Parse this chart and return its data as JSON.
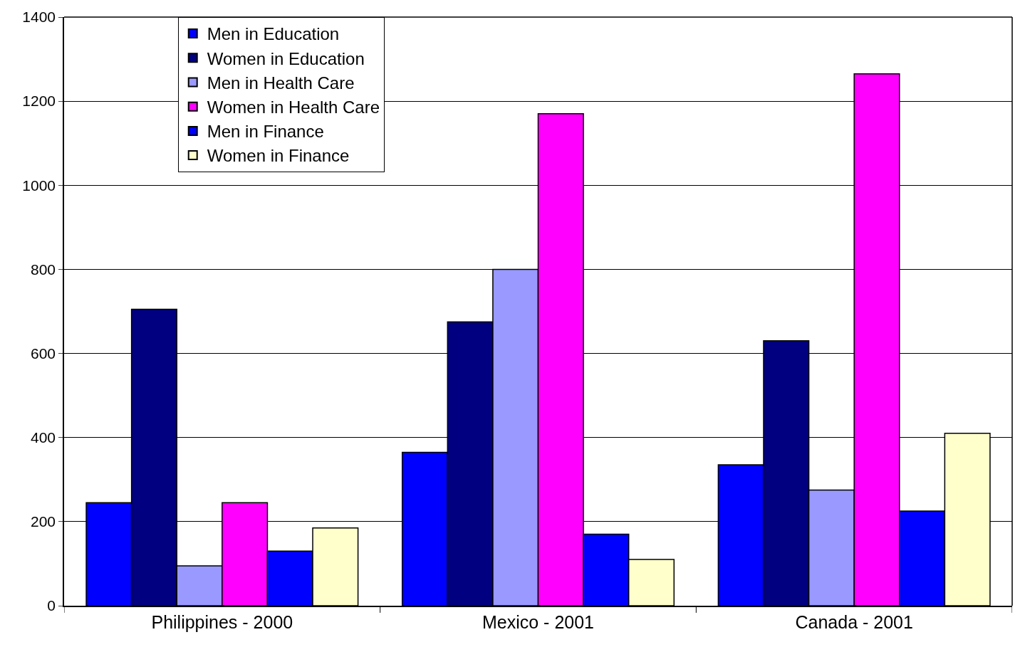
{
  "chart_data": {
    "type": "bar",
    "categories": [
      "Philippines - 2000",
      "Mexico - 2001",
      "Canada - 2001"
    ],
    "series": [
      {
        "name": "Men in Education",
        "color": "#0000ff",
        "values": [
          245,
          365,
          335
        ]
      },
      {
        "name": "Women in Education",
        "color": "#000080",
        "values": [
          705,
          675,
          630
        ]
      },
      {
        "name": "Men in Health Care",
        "color": "#9999ff",
        "values": [
          95,
          800,
          275
        ]
      },
      {
        "name": "Women in Health Care",
        "color": "#ff00ff",
        "values": [
          245,
          1170,
          1265
        ]
      },
      {
        "name": "Men in Finance",
        "color": "#0000ff",
        "values": [
          130,
          170,
          225
        ]
      },
      {
        "name": "Women in Finance",
        "color": "#ffffcc",
        "values": [
          185,
          110,
          410
        ]
      }
    ],
    "ylim": [
      0,
      1400
    ],
    "yticks": [
      0,
      200,
      400,
      600,
      800,
      1000,
      1200,
      1400
    ],
    "grid": "y",
    "legend": "top left"
  }
}
